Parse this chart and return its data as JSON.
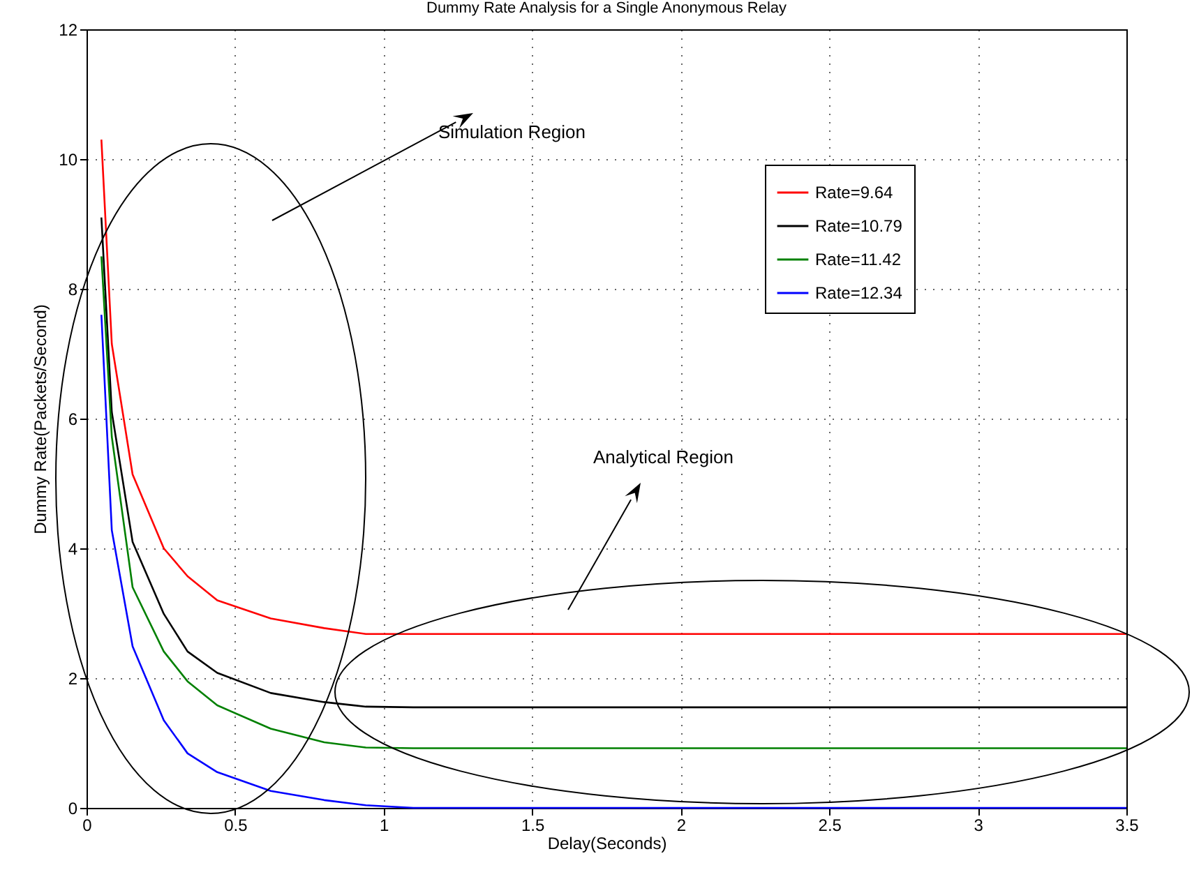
{
  "chart_data": {
    "type": "line",
    "title": "Dummy Rate Analysis for a Single Anonymous Relay",
    "xlabel": "Delay(Seconds)",
    "ylabel": "Dummy Rate(Packets/Second)",
    "annotations": [
      "Simulation Region",
      "Analytical Region"
    ],
    "x": [
      0.05,
      0.085,
      0.155,
      0.26,
      0.34,
      0.44,
      0.62,
      0.8,
      0.94,
      1.1,
      3.5
    ],
    "series": [
      {
        "name": "Rate=9.64",
        "color": "#ff0000",
        "values": [
          10.3,
          7.15,
          5.14,
          4.0,
          3.57,
          3.2,
          2.92,
          2.77,
          2.68,
          2.68,
          2.68
        ]
      },
      {
        "name": "Rate=10.79",
        "color": "#000000",
        "values": [
          9.1,
          6.1,
          4.1,
          2.99,
          2.41,
          2.08,
          1.77,
          1.63,
          1.56,
          1.55,
          1.55
        ]
      },
      {
        "name": "Rate=11.42",
        "color": "#008000",
        "values": [
          8.5,
          5.72,
          3.4,
          2.41,
          1.95,
          1.58,
          1.22,
          1.01,
          0.93,
          0.92,
          0.92
        ]
      },
      {
        "name": "Rate=12.34",
        "color": "#0000ff",
        "values": [
          7.6,
          4.28,
          2.49,
          1.35,
          0.84,
          0.55,
          0.26,
          0.12,
          0.04,
          0,
          0
        ]
      }
    ],
    "xlim": [
      0,
      3.5
    ],
    "xticks": [
      0,
      0.5,
      1,
      1.5,
      2,
      2.5,
      3,
      3.5
    ],
    "ylim": [
      0,
      12
    ],
    "yticks": [
      0,
      2,
      4,
      6,
      8,
      10,
      12
    ],
    "grid": true,
    "legend": "top right",
    "marker": "none",
    "line_style": "solid"
  }
}
